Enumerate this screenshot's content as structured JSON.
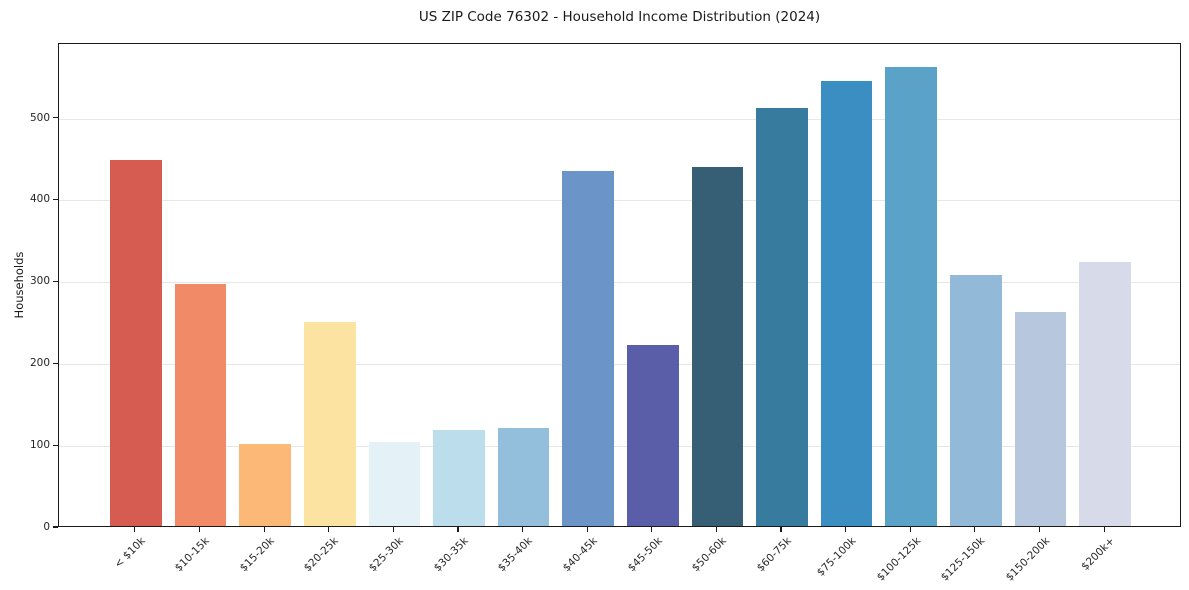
{
  "chart_data": {
    "type": "bar",
    "title": "US ZIP Code 76302 - Household Income Distribution (2024)",
    "xlabel": "",
    "ylabel": "Households",
    "categories": [
      "< $10k",
      "$10-15k",
      "$15-20k",
      "$20-25k",
      "$25-30k",
      "$30-35k",
      "$35-40k",
      "$40-45k",
      "$45-50k",
      "$50-60k",
      "$60-75k",
      "$75-100k",
      "$100-125k",
      "$125-150k",
      "$150-200k",
      "$200k+"
    ],
    "values": [
      447,
      296,
      100,
      249,
      102,
      117,
      120,
      434,
      221,
      438,
      511,
      544,
      561,
      306,
      261,
      322
    ],
    "bar_colors": [
      "#d65c51",
      "#f08a67",
      "#fbb877",
      "#fde3a1",
      "#e4f2f7",
      "#bcdeec",
      "#93bfdd",
      "#6b95c8",
      "#5a5ea8",
      "#365e74",
      "#377b9e",
      "#3a8ec1",
      "#5aa2c8",
      "#93b9d9",
      "#b6c7de",
      "#d7dae8"
    ],
    "yticks": [
      0,
      100,
      200,
      300,
      400,
      500
    ],
    "ylim": [
      0,
      591
    ],
    "bar_width_fraction": 0.8,
    "grid": "horizontal",
    "legend": "none",
    "grid_color": "#e7e7e7",
    "spine_color": "#1a1a1a",
    "text_color": "#262626",
    "background_color": "#ffffff"
  }
}
